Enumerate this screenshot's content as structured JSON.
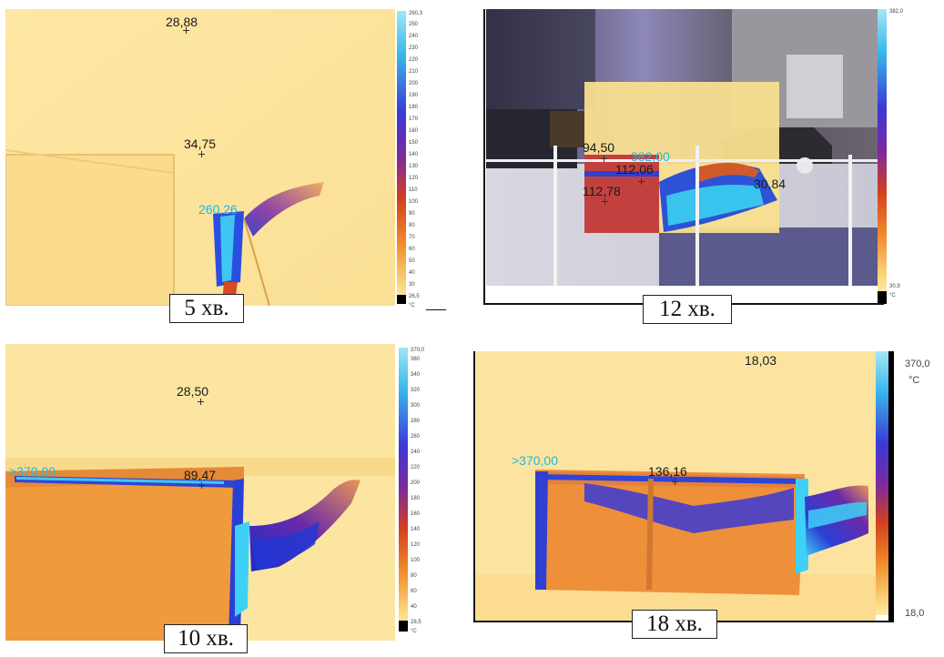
{
  "panels": [
    {
      "caption": "5 хв.",
      "scale": {
        "max": "260,3",
        "min": "26,5",
        "unit": "°C",
        "ticks": [
          "250",
          "240",
          "230",
          "220",
          "210",
          "200",
          "190",
          "180",
          "170",
          "160",
          "150",
          "140",
          "130",
          "120",
          "110",
          "100",
          "90",
          "80",
          "70",
          "60",
          "50",
          "40",
          "30"
        ]
      },
      "points": [
        {
          "label": "28,88",
          "hot": false
        },
        {
          "label": "34,75",
          "hot": false
        },
        {
          "label": "260,26",
          "hot": true
        }
      ]
    },
    {
      "caption": "12 хв.",
      "scale": {
        "max": "382,0",
        "min": "30,9",
        "unit": "°C",
        "ticks": []
      },
      "points": [
        {
          "label": "94,50",
          "hot": false
        },
        {
          "label": "382,00",
          "hot": true
        },
        {
          "label": "112,06",
          "hot": false
        },
        {
          "label": "112,78",
          "hot": false
        },
        {
          "label": "30,84",
          "hot": false
        }
      ]
    },
    {
      "caption": "10 хв.",
      "scale": {
        "max": "370,0",
        "min": "28,5",
        "unit": "°C",
        "ticks": [
          "360",
          "340",
          "320",
          "300",
          "280",
          "260",
          "240",
          "220",
          "200",
          "180",
          "160",
          "140",
          "120",
          "100",
          "80",
          "60",
          "40"
        ]
      },
      "points": [
        {
          "label": "28,50",
          "hot": false
        },
        {
          "label": ">370,00",
          "hot": true
        },
        {
          "label": "89,47",
          "hot": false
        }
      ]
    },
    {
      "caption": "18 хв.",
      "scale": {
        "max": "370,0",
        "min": "18,0",
        "unit": "°C",
        "ticks": []
      },
      "points": [
        {
          "label": "18,03",
          "hot": false
        },
        {
          "label": ">370,00",
          "hot": true
        },
        {
          "label": "136,16",
          "hot": false
        }
      ]
    }
  ],
  "colors": {
    "background_yellow": "#fbe39a",
    "hot_label": "#1fb8e6"
  }
}
